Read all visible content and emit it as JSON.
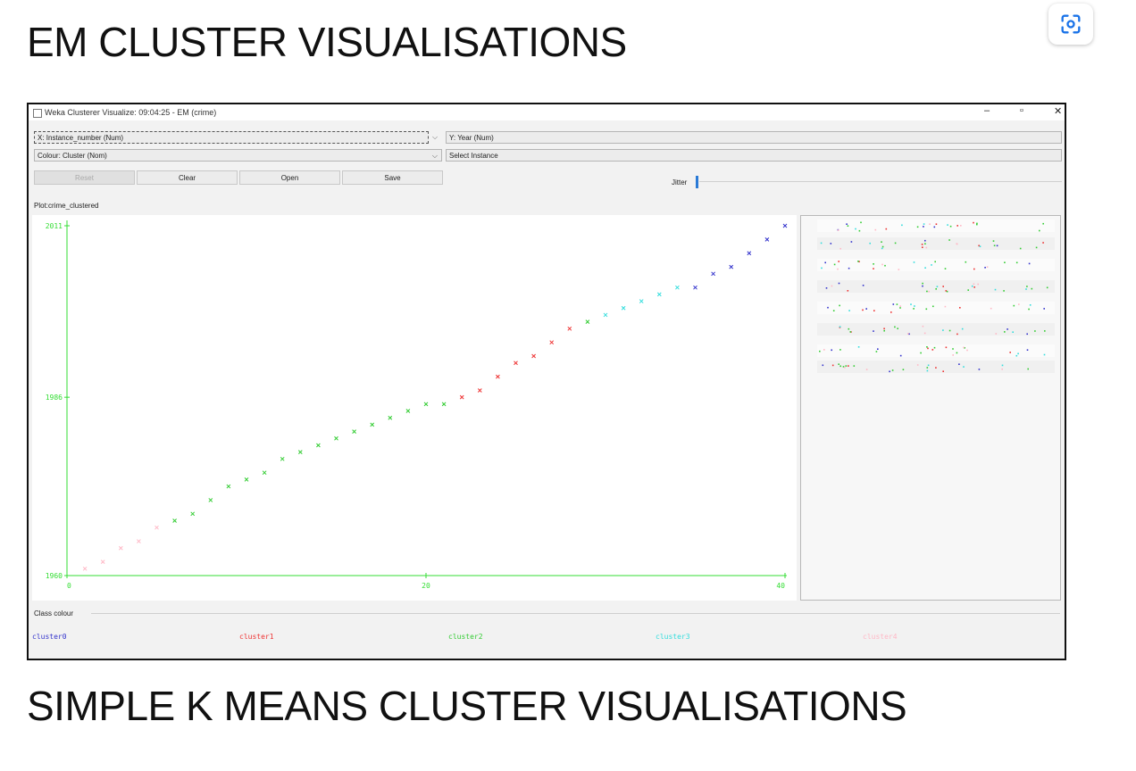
{
  "headings": {
    "em": "EM CLUSTER VISUALISATIONS",
    "kmeans": "SIMPLE K MEANS CLUSTER VISUALISATIONS"
  },
  "lens_button": {
    "icon": "lens-scan-icon"
  },
  "window": {
    "title": "Weka Clusterer Visualize: 09:04:25 - EM (crime)",
    "controls": {
      "minimize": "–",
      "maximize": "▫",
      "close": "✕"
    },
    "x_axis_select": "X: Instance_number (Num)",
    "y_axis_select": "Y: Year (Num)",
    "colour_select": "Colour: Cluster (Nom)",
    "select_instance": "Select Instance",
    "buttons": {
      "reset": "Reset",
      "clear": "Clear",
      "open": "Open",
      "save": "Save"
    },
    "jitter_label": "Jitter",
    "plot_label": "Plot:crime_clustered",
    "class_colour_label": "Class colour"
  },
  "chart_data": {
    "type": "scatter",
    "marker": "x",
    "x_ticks": [
      "0",
      "20",
      "40"
    ],
    "y_ticks": [
      "1960",
      "1986",
      "2011"
    ],
    "xlim": [
      0,
      40
    ],
    "ylim": [
      1960,
      2011
    ],
    "axis_color": "#33dd33",
    "series": [
      {
        "name": "cluster0",
        "color": "#3333cc",
        "x": [
          35,
          36,
          37,
          38,
          39,
          40
        ],
        "y": [
          2002,
          2004,
          2005,
          2007,
          2009,
          2011
        ]
      },
      {
        "name": "cluster1",
        "color": "#ee3333",
        "x": [
          22,
          23,
          24,
          25,
          26,
          27,
          28
        ],
        "y": [
          1986,
          1987,
          1989,
          1991,
          1992,
          1994,
          1996
        ]
      },
      {
        "name": "cluster2",
        "color": "#33cc33",
        "x": [
          6,
          7,
          8,
          9,
          10,
          11,
          12,
          13,
          14,
          15,
          16,
          17,
          18,
          19,
          20,
          21,
          29
        ],
        "y": [
          1968,
          1969,
          1971,
          1973,
          1974,
          1975,
          1977,
          1978,
          1979,
          1980,
          1981,
          1982,
          1983,
          1984,
          1985,
          1985,
          1997
        ]
      },
      {
        "name": "cluster3",
        "color": "#33dddd",
        "x": [
          30,
          31,
          32,
          33,
          34
        ],
        "y": [
          1998,
          1999,
          2000,
          2001,
          2002
        ]
      },
      {
        "name": "cluster4",
        "color": "#ffb8c6",
        "x": [
          1,
          2,
          3,
          4,
          5
        ],
        "y": [
          1961,
          1962,
          1964,
          1965,
          1967
        ]
      }
    ]
  }
}
